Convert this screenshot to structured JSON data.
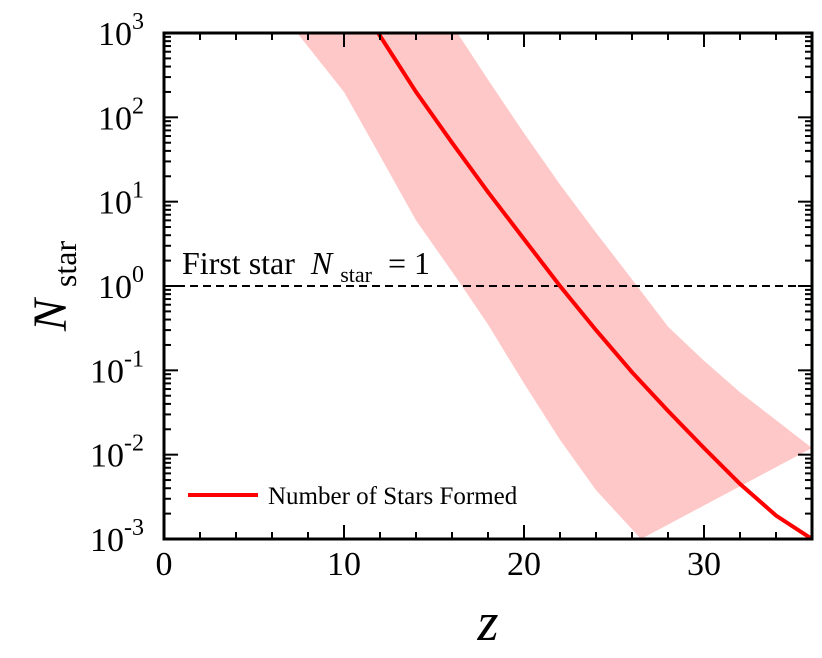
{
  "chart_data": {
    "type": "line",
    "title": "",
    "xlabel": "z",
    "ylabel": {
      "base": "N",
      "sub": "star"
    },
    "xlim": [
      0,
      36
    ],
    "ylim": [
      0.001,
      1000
    ],
    "yscale": "log",
    "grid": false,
    "legend_placement": "bottom-left",
    "x_ticks": [
      0,
      10,
      20,
      30
    ],
    "y_ticks": [
      {
        "value": 0.001,
        "base": "10",
        "exp": "-3"
      },
      {
        "value": 0.01,
        "base": "10",
        "exp": "-2"
      },
      {
        "value": 0.1,
        "base": "10",
        "exp": "-1"
      },
      {
        "value": 1,
        "base": "10",
        "exp": "0"
      },
      {
        "value": 10,
        "base": "10",
        "exp": "1"
      },
      {
        "value": 100,
        "base": "10",
        "exp": "2"
      },
      {
        "value": 1000,
        "base": "10",
        "exp": "3"
      }
    ],
    "series": [
      {
        "name": "Number of Stars Formed",
        "color": "#ff0000",
        "x": [
          11.9,
          14,
          16,
          18,
          20,
          22,
          24,
          26,
          28,
          30,
          32,
          34,
          36
        ],
        "y": [
          1000,
          200,
          50,
          13,
          3.6,
          1.0,
          0.3,
          0.095,
          0.033,
          0.012,
          0.0045,
          0.0019,
          0.001
        ]
      }
    ],
    "band": {
      "color": "#ffc8c8",
      "x": [
        7.4,
        10,
        12,
        14,
        16,
        18,
        20,
        22,
        24,
        26,
        28,
        30,
        32,
        34,
        36
      ],
      "upper": [
        1000,
        150,
        40,
        10,
        2.8,
        0.85,
        0.27,
        0.085,
        0.028,
        0.0095,
        0.0032,
        0.0011,
        0.001,
        0.001,
        0.001
      ],
      "upper_points": [
        [
          7.4,
          1000
        ],
        [
          36,
          1000
        ],
        [
          36,
          0.015
        ]
      ],
      "lower_points": [
        [
          36,
          0.015
        ],
        [
          32,
          0.055
        ],
        [
          30,
          0.13
        ],
        [
          28,
          0.33
        ],
        [
          26,
          1.2
        ],
        [
          24,
          4.3
        ],
        [
          22,
          16
        ],
        [
          20,
          65
        ],
        [
          18,
          280
        ],
        [
          16.5,
          1000
        ]
      ],
      "lower_edge": [
        [
          26.5,
          0.001
        ],
        [
          24,
          0.0038
        ],
        [
          22,
          0.015
        ],
        [
          20,
          0.07
        ],
        [
          18,
          0.35
        ],
        [
          16.3,
          1.2
        ],
        [
          14,
          6
        ],
        [
          12,
          35
        ],
        [
          10,
          200
        ],
        [
          7.4,
          1000
        ]
      ],
      "upper_edge": [
        [
          16.3,
          1000
        ],
        [
          18,
          280
        ],
        [
          20,
          65
        ],
        [
          22,
          16
        ],
        [
          24,
          4.3
        ],
        [
          26,
          1.2
        ],
        [
          28,
          0.33
        ],
        [
          30,
          0.13
        ],
        [
          32,
          0.055
        ],
        [
          36,
          0.012
        ]
      ]
    },
    "reference_line": {
      "y": 1,
      "style": "dashed"
    },
    "annotation": {
      "text": "First star",
      "math_base": "N",
      "math_sub": "star",
      "math_rest": "= 1"
    }
  }
}
